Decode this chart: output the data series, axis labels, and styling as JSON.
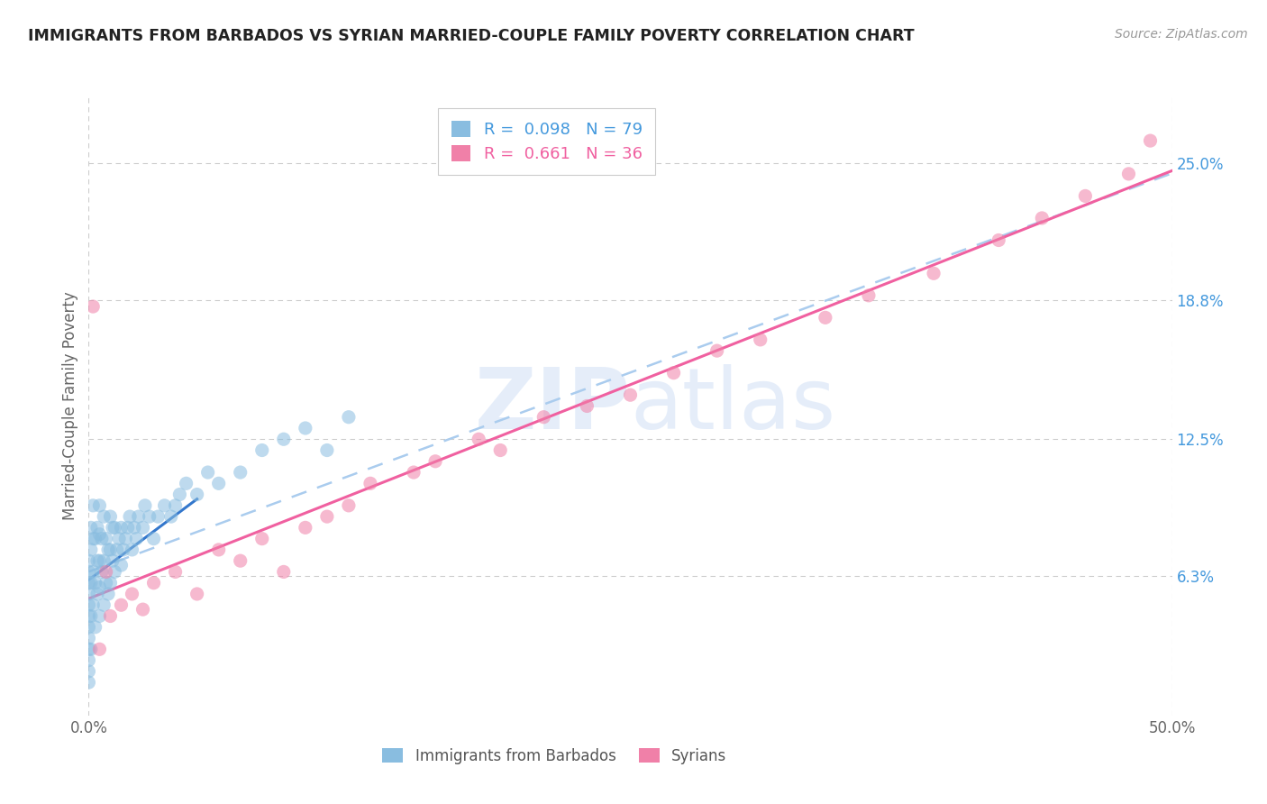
{
  "title": "IMMIGRANTS FROM BARBADOS VS SYRIAN MARRIED-COUPLE FAMILY POVERTY CORRELATION CHART",
  "source_text": "Source: ZipAtlas.com",
  "ylabel": "Married-Couple Family Poverty",
  "watermark_zip": "ZIP",
  "watermark_atlas": "atlas",
  "xlim": [
    0.0,
    50.0
  ],
  "ylim": [
    0.0,
    28.0
  ],
  "xtick_labels": [
    "0.0%",
    "50.0%"
  ],
  "xtick_positions": [
    0.0,
    50.0
  ],
  "ytick_labels": [
    "6.3%",
    "12.5%",
    "18.8%",
    "25.0%"
  ],
  "ytick_positions": [
    6.3,
    12.5,
    18.8,
    25.0
  ],
  "barbados_R": 0.098,
  "barbados_N": 79,
  "syrians_R": 0.661,
  "syrians_N": 36,
  "legend_label_barbados": "Immigrants from Barbados",
  "legend_label_syrians": "Syrians",
  "barbados_color": "#89bde0",
  "syrians_color": "#f080a8",
  "blue_line_color": "#3377cc",
  "pink_line_color": "#f060a0",
  "dashed_line_color": "#aaccee",
  "grid_color": "#cccccc",
  "title_color": "#222222",
  "axis_label_color": "#666666",
  "right_tick_color": "#4499dd",
  "barbados_scatter_x": [
    0.0,
    0.0,
    0.0,
    0.0,
    0.0,
    0.0,
    0.0,
    0.0,
    0.0,
    0.0,
    0.0,
    0.0,
    0.1,
    0.1,
    0.1,
    0.1,
    0.1,
    0.2,
    0.2,
    0.2,
    0.2,
    0.3,
    0.3,
    0.3,
    0.4,
    0.4,
    0.4,
    0.5,
    0.5,
    0.5,
    0.5,
    0.5,
    0.6,
    0.6,
    0.7,
    0.7,
    0.7,
    0.8,
    0.8,
    0.9,
    0.9,
    1.0,
    1.0,
    1.0,
    1.1,
    1.1,
    1.2,
    1.2,
    1.3,
    1.4,
    1.5,
    1.5,
    1.6,
    1.7,
    1.8,
    1.9,
    2.0,
    2.1,
    2.2,
    2.3,
    2.5,
    2.6,
    2.8,
    3.0,
    3.2,
    3.5,
    3.8,
    4.0,
    4.2,
    4.5,
    5.0,
    5.5,
    6.0,
    7.0,
    8.0,
    9.0,
    10.0,
    11.0,
    12.0
  ],
  "barbados_scatter_y": [
    1.5,
    2.0,
    2.5,
    3.0,
    3.5,
    4.0,
    4.5,
    5.0,
    5.5,
    6.0,
    6.5,
    7.0,
    3.0,
    4.5,
    6.0,
    7.5,
    8.5,
    5.0,
    6.5,
    8.0,
    9.5,
    4.0,
    6.0,
    8.0,
    5.5,
    7.0,
    8.5,
    4.5,
    5.8,
    7.0,
    8.2,
    9.5,
    6.5,
    8.0,
    5.0,
    7.0,
    9.0,
    6.0,
    8.0,
    5.5,
    7.5,
    6.0,
    7.5,
    9.0,
    7.0,
    8.5,
    6.5,
    8.5,
    7.5,
    8.0,
    6.8,
    8.5,
    7.5,
    8.0,
    8.5,
    9.0,
    7.5,
    8.5,
    8.0,
    9.0,
    8.5,
    9.5,
    9.0,
    8.0,
    9.0,
    9.5,
    9.0,
    9.5,
    10.0,
    10.5,
    10.0,
    11.0,
    10.5,
    11.0,
    12.0,
    12.5,
    13.0,
    12.0,
    13.5
  ],
  "syrians_scatter_x": [
    0.2,
    0.5,
    0.8,
    1.0,
    1.5,
    2.0,
    2.5,
    3.0,
    4.0,
    5.0,
    6.0,
    7.0,
    8.0,
    9.0,
    10.0,
    11.0,
    12.0,
    13.0,
    15.0,
    16.0,
    18.0,
    19.0,
    21.0,
    23.0,
    25.0,
    27.0,
    29.0,
    31.0,
    34.0,
    36.0,
    39.0,
    42.0,
    44.0,
    46.0,
    48.0,
    49.0
  ],
  "syrians_scatter_y": [
    18.5,
    3.0,
    6.5,
    4.5,
    5.0,
    5.5,
    4.8,
    6.0,
    6.5,
    5.5,
    7.5,
    7.0,
    8.0,
    6.5,
    8.5,
    9.0,
    9.5,
    10.5,
    11.0,
    11.5,
    12.5,
    12.0,
    13.5,
    14.0,
    14.5,
    15.5,
    16.5,
    17.0,
    18.0,
    19.0,
    20.0,
    21.5,
    22.5,
    23.5,
    24.5,
    26.0
  ]
}
